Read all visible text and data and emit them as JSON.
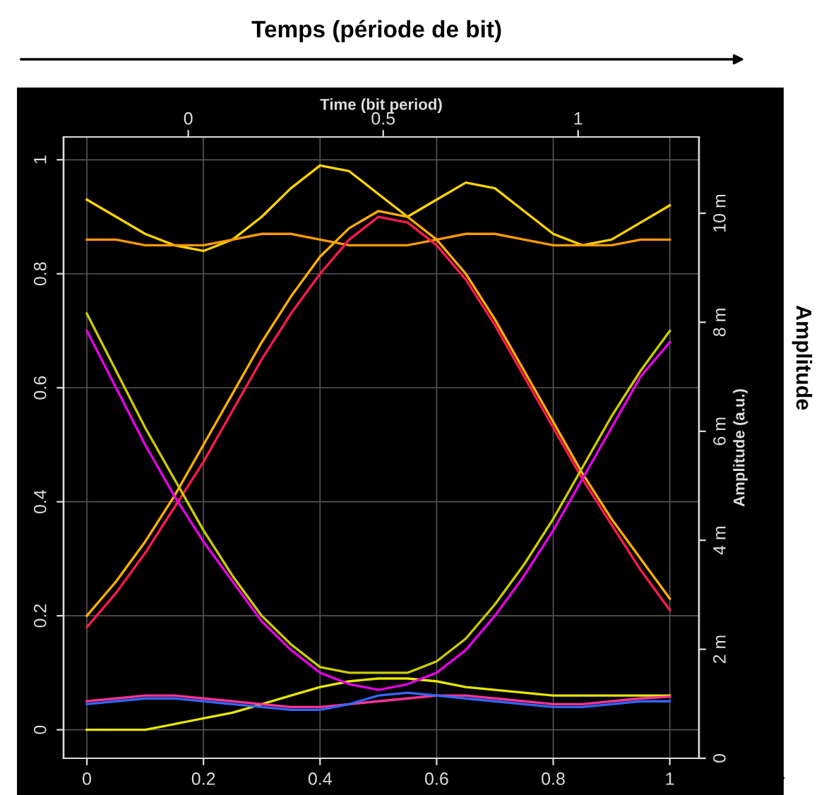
{
  "chart_data": {
    "type": "line",
    "title": "Temps (période de bit)",
    "annotations": [
      "Amplitude"
    ],
    "x2label": "Time (bit period)",
    "y2label": "Amplitude (a.u.)",
    "x": [
      0,
      0.05,
      0.1,
      0.15,
      0.2,
      0.25,
      0.3,
      0.35,
      0.4,
      0.45,
      0.5,
      0.55,
      0.6,
      0.65,
      0.7,
      0.75,
      0.8,
      0.85,
      0.9,
      0.95,
      1
    ],
    "series": [
      {
        "color": "#ffd400",
        "values": [
          0.93,
          0.9,
          0.87,
          0.85,
          0.84,
          0.86,
          0.9,
          0.95,
          0.99,
          0.98,
          0.94,
          0.9,
          0.93,
          0.96,
          0.95,
          0.91,
          0.87,
          0.85,
          0.86,
          0.89,
          0.92
        ]
      },
      {
        "color": "#ff9900",
        "values": [
          0.86,
          0.86,
          0.85,
          0.85,
          0.85,
          0.86,
          0.87,
          0.87,
          0.86,
          0.85,
          0.85,
          0.85,
          0.86,
          0.87,
          0.87,
          0.86,
          0.85,
          0.85,
          0.85,
          0.86,
          0.86
        ]
      },
      {
        "color": "#e6e600",
        "values": [
          0,
          0,
          0,
          0.01,
          0.02,
          0.03,
          0.045,
          0.06,
          0.075,
          0.085,
          0.09,
          0.09,
          0.085,
          0.075,
          0.07,
          0.065,
          0.06,
          0.06,
          0.06,
          0.06,
          0.06
        ]
      },
      {
        "color": "#ff1a4d",
        "values": [
          0.18,
          0.24,
          0.31,
          0.39,
          0.47,
          0.56,
          0.65,
          0.73,
          0.8,
          0.86,
          0.9,
          0.89,
          0.85,
          0.79,
          0.71,
          0.62,
          0.53,
          0.44,
          0.36,
          0.28,
          0.21
        ]
      },
      {
        "color": "#ffb000",
        "values": [
          0.2,
          0.26,
          0.33,
          0.41,
          0.5,
          0.59,
          0.68,
          0.76,
          0.83,
          0.88,
          0.91,
          0.9,
          0.86,
          0.8,
          0.72,
          0.63,
          0.54,
          0.45,
          0.37,
          0.3,
          0.23
        ]
      },
      {
        "color": "#e600e6",
        "values": [
          0.7,
          0.6,
          0.5,
          0.41,
          0.33,
          0.26,
          0.19,
          0.14,
          0.1,
          0.08,
          0.07,
          0.08,
          0.1,
          0.14,
          0.2,
          0.27,
          0.35,
          0.44,
          0.53,
          0.62,
          0.68
        ]
      },
      {
        "color": "#cccc00",
        "values": [
          0.73,
          0.63,
          0.53,
          0.44,
          0.35,
          0.27,
          0.2,
          0.15,
          0.11,
          0.1,
          0.1,
          0.1,
          0.12,
          0.16,
          0.22,
          0.29,
          0.37,
          0.46,
          0.55,
          0.63,
          0.7
        ]
      },
      {
        "color": "#ff3399",
        "values": [
          0.05,
          0.055,
          0.06,
          0.06,
          0.055,
          0.05,
          0.045,
          0.04,
          0.04,
          0.045,
          0.05,
          0.055,
          0.06,
          0.06,
          0.055,
          0.05,
          0.045,
          0.045,
          0.05,
          0.055,
          0.058
        ]
      },
      {
        "color": "#3366ff",
        "values": [
          0.045,
          0.05,
          0.055,
          0.055,
          0.05,
          0.045,
          0.04,
          0.035,
          0.035,
          0.045,
          0.06,
          0.065,
          0.06,
          0.055,
          0.05,
          0.045,
          0.04,
          0.04,
          0.045,
          0.05,
          0.05
        ]
      }
    ],
    "xlim": [
      -0.04,
      1.05
    ],
    "xticks": [
      0,
      0.2,
      0.4,
      0.6,
      0.8,
      1
    ],
    "ylim": [
      -0.05,
      1.04
    ],
    "yticks": [
      0,
      0.2,
      0.4,
      0.6,
      0.8,
      1
    ],
    "x2lim": [
      -0.32,
      1.31
    ],
    "x2ticks": [
      0,
      0.5,
      1
    ],
    "y2lim": [
      0,
      11.4
    ],
    "y2ticks": [
      0,
      {
        "value": 2,
        "label": "2 m"
      },
      {
        "value": 4,
        "label": "4 m"
      },
      {
        "value": 6,
        "label": "6 m"
      },
      {
        "value": 8,
        "label": "8 m"
      },
      {
        "value": 10,
        "label": "10 m"
      }
    ],
    "grid": true,
    "line_style": "solid",
    "marker": "none"
  }
}
